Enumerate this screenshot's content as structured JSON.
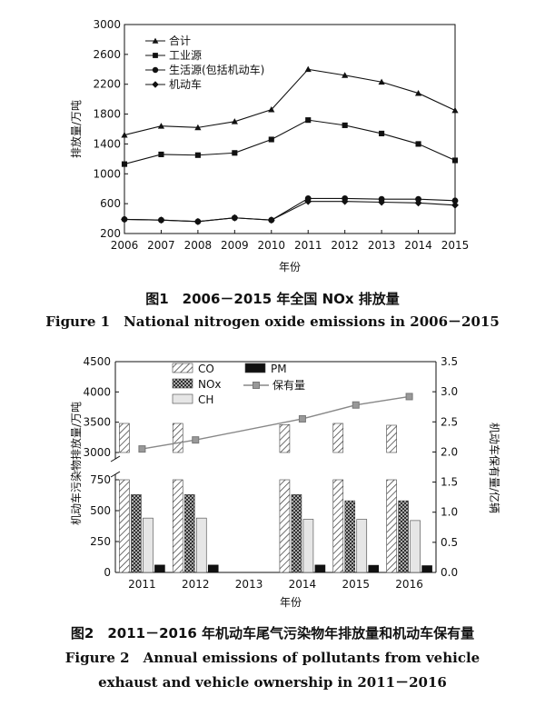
{
  "chart_data": [
    {
      "type": "line",
      "ylabel": "排放量/万吨",
      "xlabel": "年份",
      "ylim": [
        200,
        3000
      ],
      "yticks": [
        200,
        600,
        1000,
        1400,
        1800,
        2200,
        2600,
        3000
      ],
      "x": [
        "2006",
        "2007",
        "2008",
        "2009",
        "2010",
        "2011",
        "2012",
        "2013",
        "2014",
        "2015"
      ],
      "legend_position": "top-left",
      "series": [
        {
          "name": "合计",
          "marker": "triangle",
          "values": [
            1520,
            1640,
            1620,
            1700,
            1860,
            2400,
            2320,
            2230,
            2080,
            1850
          ]
        },
        {
          "name": "工业源",
          "marker": "square",
          "values": [
            1130,
            1260,
            1250,
            1280,
            1460,
            1720,
            1650,
            1540,
            1400,
            1180
          ]
        },
        {
          "name": "生活源(包括机动车)",
          "marker": "circle",
          "values": [
            390,
            380,
            360,
            410,
            380,
            670,
            670,
            660,
            660,
            640
          ]
        },
        {
          "name": "机动车",
          "marker": "diamond",
          "values": [
            390,
            380,
            360,
            410,
            380,
            630,
            630,
            620,
            610,
            580
          ]
        }
      ],
      "caption_cn": "图1　2006－2015 年全国 NOx 排放量",
      "caption_en": "Figure 1　National nitrogen oxide emissions in 2006－2015"
    },
    {
      "type": "bar",
      "ylabel": "机动车污染物排放量/万吨",
      "y2label": "机动车保有量/亿辆",
      "xlabel": "年份",
      "categories": [
        "2011",
        "2012",
        "2013",
        "2014",
        "2015",
        "2016"
      ],
      "y_axis_break": true,
      "ylim_lower": [
        0,
        750
      ],
      "yticks_lower": [
        0,
        250,
        500,
        750
      ],
      "ylim_upper": [
        3000,
        4500
      ],
      "yticks_upper": [
        3000,
        3500,
        4000,
        4500
      ],
      "y2lim": [
        0,
        3.5
      ],
      "y2ticks": [
        0,
        0.5,
        1.0,
        1.5,
        2.0,
        2.5,
        3.0,
        3.5
      ],
      "legend_position": "top",
      "series": [
        {
          "name": "CO",
          "pattern": "diagonal-hatch",
          "values": [
            3480,
            3480,
            null,
            3460,
            3480,
            3450
          ]
        },
        {
          "name": "NOx",
          "pattern": "crosshatch",
          "values": [
            630,
            630,
            null,
            630,
            580,
            580
          ]
        },
        {
          "name": "CH",
          "pattern": "light-gray",
          "values": [
            440,
            440,
            null,
            430,
            430,
            420
          ]
        },
        {
          "name": "PM",
          "pattern": "black",
          "values": [
            60,
            60,
            null,
            60,
            58,
            55
          ]
        }
      ],
      "line_series": {
        "name": "保有量",
        "axis": "right",
        "marker": "square",
        "values": [
          2.05,
          2.2,
          null,
          2.55,
          2.78,
          2.92
        ]
      },
      "caption_cn": "图2　2011－2016 年机动车尾气污染物年排放量和机动车保有量",
      "caption_en_line1": "Figure 2　Annual emissions of pollutants from vehicle",
      "caption_en_line2": "exhaust and vehicle ownership in 2011－2016"
    }
  ]
}
